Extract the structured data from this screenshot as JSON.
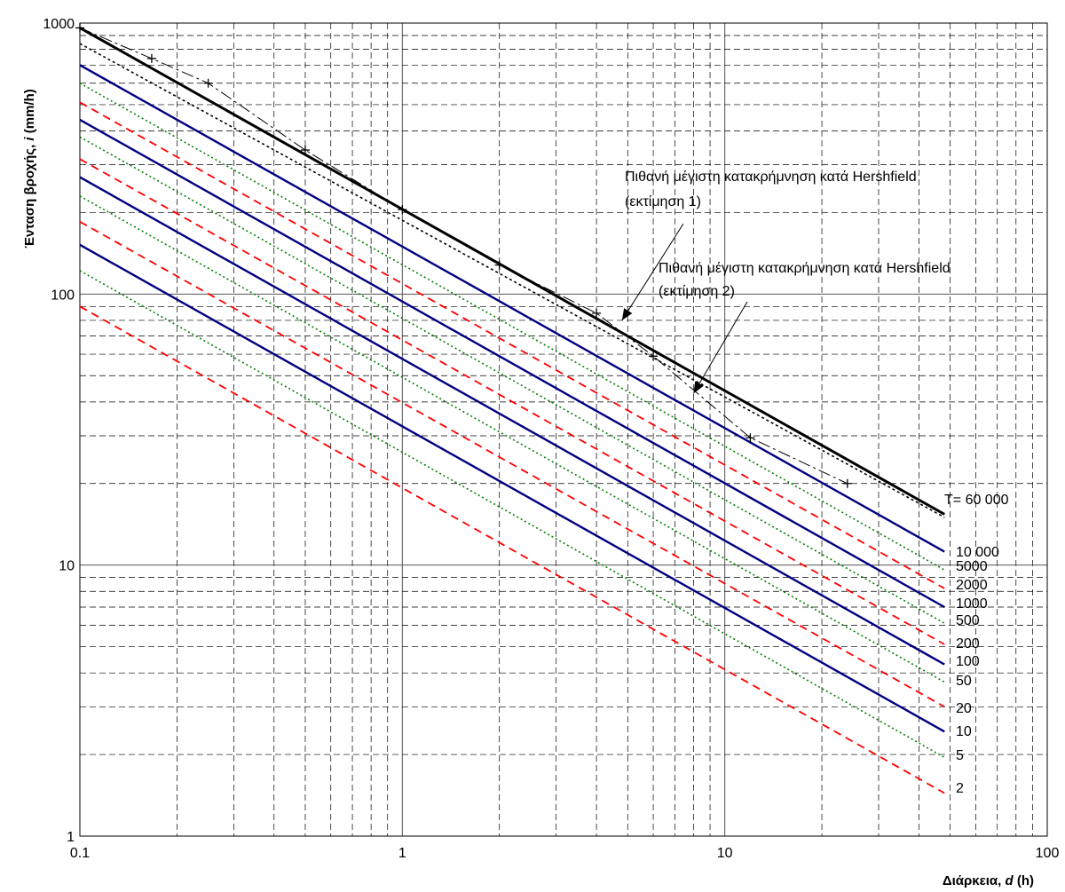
{
  "chart_data": {
    "type": "line",
    "xscale": "log",
    "yscale": "log",
    "xlim": [
      0.1,
      100
    ],
    "ylim": [
      1,
      1000
    ],
    "grid": true,
    "xlabel": {
      "prefix": "Διάρκεια, ",
      "var": "d",
      "suffix": " (h)"
    },
    "ylabel": {
      "prefix": "Ένταση βροχής, ",
      "var": "i",
      "suffix": " (mm/h)"
    },
    "x_ticks": [
      0.1,
      1,
      10,
      100
    ],
    "x_tick_labels": [
      "0.1",
      "1",
      "10",
      "100"
    ],
    "y_ticks": [
      1,
      10,
      100,
      1000
    ],
    "y_tick_labels": [
      "1",
      "10",
      "100",
      "1000"
    ],
    "series": [
      {
        "name": "T= 60 000",
        "style": "thick",
        "color": "#000000",
        "x": [
          0.1,
          48
        ],
        "y": [
          960,
          15.4
        ]
      },
      {
        "name": "10 000",
        "style": "solid",
        "color": "#000080",
        "x": [
          0.1,
          48
        ],
        "y": [
          700,
          11.2
        ]
      },
      {
        "name": "5000",
        "style": "dotted",
        "color": "#008000",
        "x": [
          0.1,
          48
        ],
        "y": [
          600,
          9.6
        ]
      },
      {
        "name": "2000",
        "style": "dashed",
        "color": "#ff0000",
        "x": [
          0.1,
          48
        ],
        "y": [
          510,
          8.2
        ]
      },
      {
        "name": "1000",
        "style": "solid",
        "color": "#000080",
        "x": [
          0.1,
          48
        ],
        "y": [
          440,
          7.0
        ]
      },
      {
        "name": "500",
        "style": "dotted",
        "color": "#008000",
        "x": [
          0.1,
          48
        ],
        "y": [
          380,
          6.1
        ]
      },
      {
        "name": "200",
        "style": "dashed",
        "color": "#ff0000",
        "x": [
          0.1,
          48
        ],
        "y": [
          315,
          5.1
        ]
      },
      {
        "name": "100",
        "style": "solid",
        "color": "#000080",
        "x": [
          0.1,
          48
        ],
        "y": [
          270,
          4.3
        ]
      },
      {
        "name": "50",
        "style": "dotted",
        "color": "#008000",
        "x": [
          0.1,
          48
        ],
        "y": [
          230,
          3.7
        ]
      },
      {
        "name": "20",
        "style": "dashed",
        "color": "#ff0000",
        "x": [
          0.1,
          48
        ],
        "y": [
          185,
          3.0
        ]
      },
      {
        "name": "10",
        "style": "solid",
        "color": "#000080",
        "x": [
          0.1,
          48
        ],
        "y": [
          152,
          2.43
        ]
      },
      {
        "name": "5",
        "style": "dotted",
        "color": "#008000",
        "x": [
          0.1,
          48
        ],
        "y": [
          122,
          1.95
        ]
      },
      {
        "name": "2",
        "style": "dashed",
        "color": "#ff0000",
        "x": [
          0.1,
          48
        ],
        "y": [
          90,
          1.44
        ]
      }
    ],
    "pmp_estimate_1": {
      "x": [
        0.1,
        0.167,
        0.25,
        0.5,
        1,
        2,
        4,
        6,
        12,
        24
      ],
      "y": [
        960,
        740,
        600,
        340,
        205,
        128,
        85,
        59,
        29.5,
        20
      ]
    },
    "pmp_estimate_2": {
      "x": [
        0.1,
        48
      ],
      "y": [
        840,
        15
      ]
    },
    "annotations": [
      {
        "text": "Πιθανή μέγιστη κατακρήμνηση κατά Hershfield",
        "text2": "(εκτίμηση 2)",
        "arrow_to": [
          4.8,
          80
        ]
      },
      {
        "text": "Πιθανή μέγιστη κατακρήμνηση κατά Hershfield",
        "text2": "(εκτίμηση 1)",
        "arrow_to": [
          8,
          43
        ]
      }
    ]
  }
}
